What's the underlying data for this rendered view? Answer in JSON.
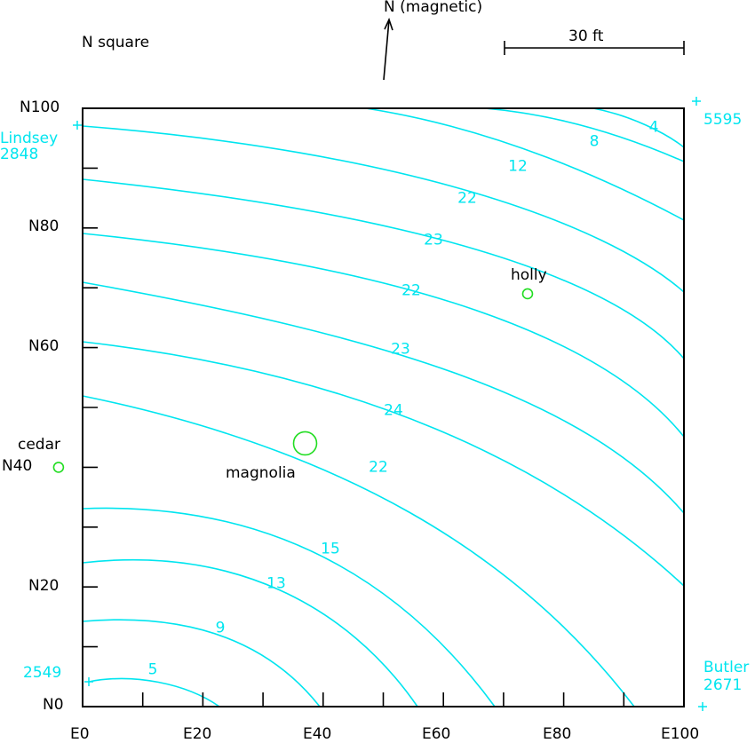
{
  "title": "N square",
  "north_label": "N (magnetic)",
  "scale_label": "30 ft",
  "axis": {
    "y_ticks": [
      "N0",
      "N20",
      "N40",
      "N60",
      "N80",
      "N100"
    ],
    "x_ticks": [
      "E0",
      "E20",
      "E40",
      "E60",
      "E80",
      "E100"
    ]
  },
  "corners": {
    "top_left": {
      "name": "Lindsey",
      "id": "2848"
    },
    "top_right": {
      "id": "5595"
    },
    "bottom_left": {
      "id": "2549"
    },
    "bottom_right": {
      "name": "Butler",
      "id": "2671"
    }
  },
  "trees": [
    {
      "name": "holly",
      "e": 74,
      "n": 69,
      "size": "small"
    },
    {
      "name": "magnolia",
      "e": 37,
      "n": 44,
      "size": "large"
    },
    {
      "name": "cedar",
      "e": -4,
      "n": 40,
      "size": "small"
    }
  ],
  "contours": [
    {
      "label": "5"
    },
    {
      "label": "9"
    },
    {
      "label": "13"
    },
    {
      "label": "15"
    },
    {
      "label": "22"
    },
    {
      "label": "24"
    },
    {
      "label": "23"
    },
    {
      "label": "22"
    },
    {
      "label": "23"
    },
    {
      "label": "22"
    },
    {
      "label": "12"
    },
    {
      "label": "8"
    },
    {
      "label": "4"
    }
  ],
  "colors": {
    "contour": "#00e5ef",
    "tree": "#22dd22",
    "axis": "#000000"
  }
}
